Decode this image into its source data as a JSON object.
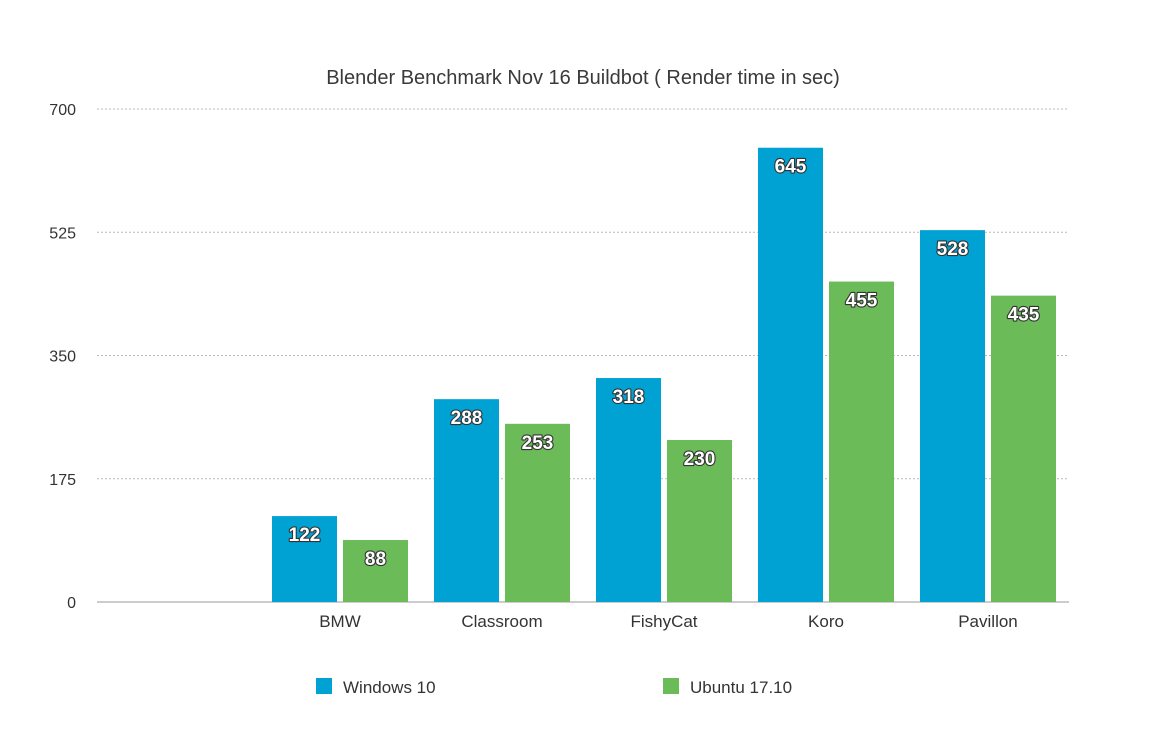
{
  "chart_data": {
    "type": "bar",
    "title": "Blender Benchmark Nov 16 Buildbot ( Render time in sec)",
    "xlabel": "",
    "ylabel": "",
    "categories": [
      "BMW",
      "Classroom",
      "FishyCat",
      "Koro",
      "Pavillon"
    ],
    "series": [
      {
        "name": "Windows 10",
        "color": "#00a2d3",
        "values": [
          122,
          288,
          318,
          645,
          528
        ]
      },
      {
        "name": "Ubuntu 17.10",
        "color": "#6bbb59",
        "values": [
          88,
          253,
          230,
          455,
          435
        ]
      }
    ],
    "yticks": [
      0,
      175,
      350,
      525,
      700
    ],
    "ylim": [
      0,
      700
    ],
    "grid": true,
    "legend_position": "bottom"
  }
}
